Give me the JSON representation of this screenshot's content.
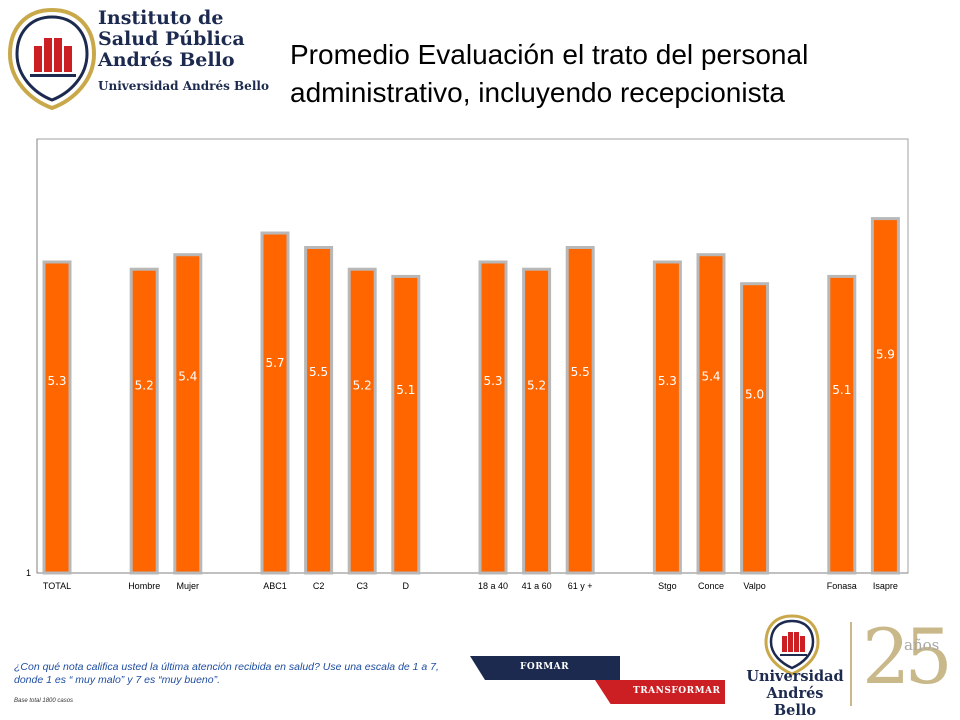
{
  "header": {
    "logo_line1": "Instituto de",
    "logo_line2": "Salud Pública",
    "logo_line3": "Andrés Bello",
    "logo_sub": "Universidad Andrés Bello",
    "title": "Promedio Evaluación el trato del personal administrativo, incluyendo recepcionista"
  },
  "chart_data": {
    "type": "bar",
    "title": "",
    "xlabel": "",
    "ylabel": "",
    "ylim": [
      1,
      7
    ],
    "yticks": [
      "1"
    ],
    "grid": false,
    "legend": "none",
    "bar_color": "#ff6600",
    "bar_edge_color": "#b8b8b8",
    "label_color": "#ffffff",
    "categories": [
      "TOTAL",
      "Hombre",
      "Mujer",
      "ABC1",
      "C2",
      "C3",
      "D",
      "18 a 40",
      "41 a 60",
      "61 y +",
      "Stgo",
      "Conce",
      "Valpo",
      "Fonasa",
      "Isapre"
    ],
    "values": [
      5.3,
      5.2,
      5.4,
      5.7,
      5.5,
      5.2,
      5.1,
      5.3,
      5.2,
      5.5,
      5.3,
      5.4,
      5.0,
      5.1,
      5.9
    ],
    "labels": [
      "5.3",
      "5.2",
      "5.4",
      "5.7",
      "5.5",
      "5.2",
      "5.1",
      "5.3",
      "5.2",
      "5.5",
      "5.3",
      "5.4",
      "5.0",
      "5.1",
      "5.9"
    ]
  },
  "footer": {
    "question": "¿Con qué nota califica usted la última atención recibida en salud? Use una escala de 1 a 7, donde 1 es “ muy malo” y 7 es “muy bueno”.",
    "base": "Base total 1800  casos",
    "band_formar": "FORMAR",
    "band_transformar": "TRANSFORMAR",
    "uni_line1": "Universidad",
    "uni_line2": "Andrés Bello",
    "anniv_number": "25",
    "anniv_word": "años"
  },
  "colors": {
    "navy": "#1d2a4f",
    "red": "#cc1f24",
    "gold": "#c9b98a",
    "question_blue": "#1f4ea0"
  }
}
